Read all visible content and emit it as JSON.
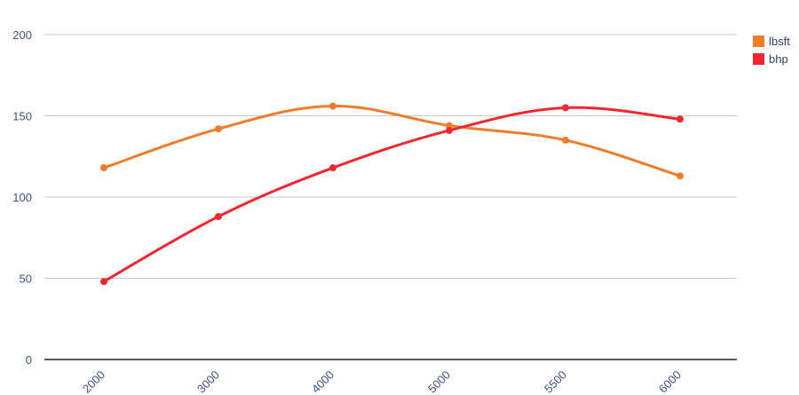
{
  "chart_data": {
    "type": "line",
    "categories": [
      "2000",
      "3000",
      "4000",
      "5000",
      "5500",
      "6000"
    ],
    "series": [
      {
        "name": "lbsft",
        "color": "#f07b2b",
        "values": [
          118,
          142,
          156,
          144,
          135,
          113
        ]
      },
      {
        "name": "bhp",
        "color": "#f2262e",
        "values": [
          48,
          88,
          118,
          141,
          155,
          148
        ]
      }
    ],
    "ylim": [
      0,
      200
    ],
    "yticks": [
      0,
      50,
      100,
      150,
      200
    ],
    "grid": true,
    "legend_position": "top-right",
    "smooth": true
  }
}
